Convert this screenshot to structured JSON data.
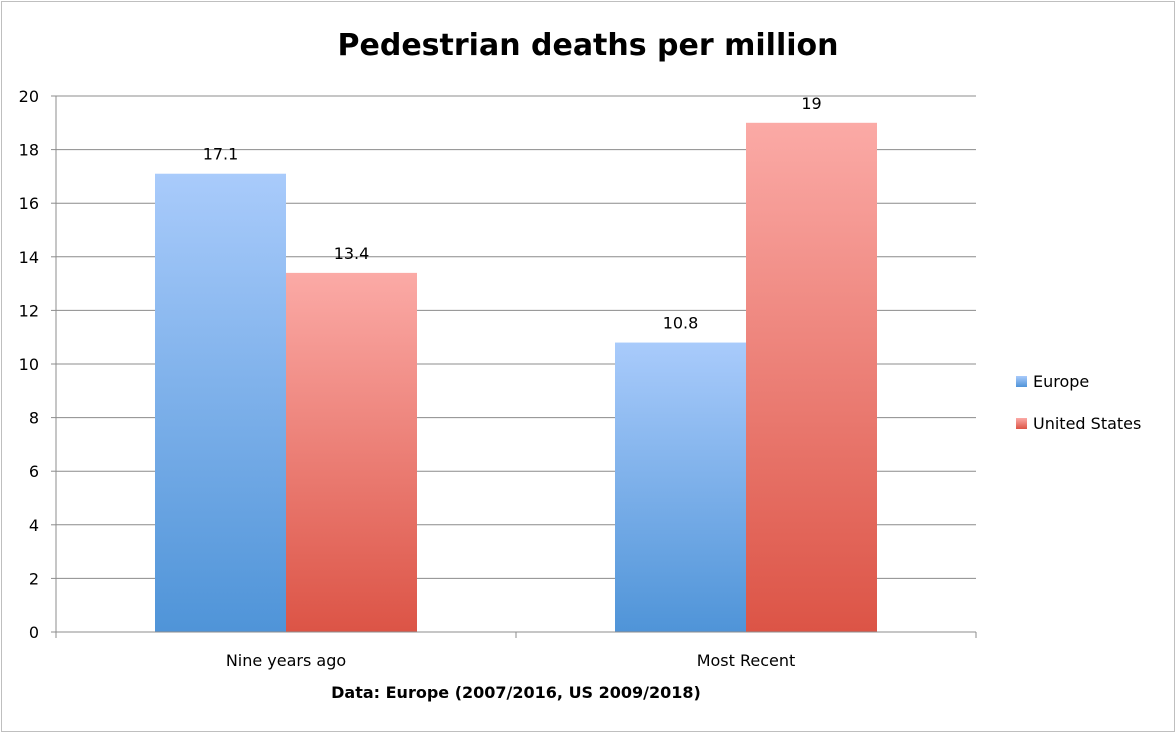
{
  "chart_data": {
    "type": "bar",
    "title": "Pedestrian deaths per million",
    "xlabel": "Data: Europe (2007/2016, US 2009/2018)",
    "ylabel": "",
    "categories": [
      "Nine years ago",
      "Most Recent"
    ],
    "series": [
      {
        "name": "Europe",
        "values": [
          17.1,
          10.8
        ],
        "labels": [
          "17.1",
          "10.8"
        ],
        "color_top": "#a9cbfb",
        "color_bottom": "#4f94d8"
      },
      {
        "name": "United States",
        "values": [
          13.4,
          19
        ],
        "labels": [
          "13.4",
          "19"
        ],
        "color_top": "#fbaaa6",
        "color_bottom": "#dc5446"
      }
    ],
    "ylim": [
      0,
      20
    ],
    "yticks": [
      0,
      2,
      4,
      6,
      8,
      10,
      12,
      14,
      16,
      18,
      20
    ],
    "grid": true,
    "legend_position": "right"
  }
}
